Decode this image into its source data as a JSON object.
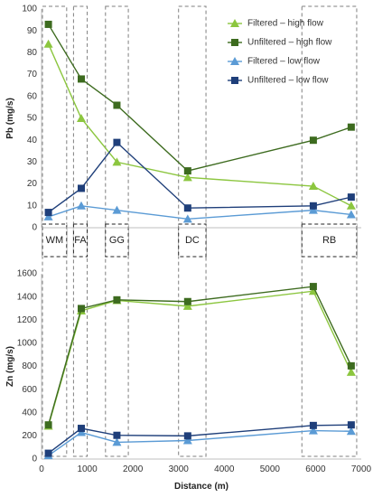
{
  "chart_data": [
    {
      "type": "line",
      "ylabel": "Pb (mg/s)",
      "ylim": [
        0,
        100
      ],
      "yticks": [
        0,
        10,
        20,
        30,
        40,
        50,
        60,
        70,
        80,
        90,
        100
      ],
      "x": [
        150,
        870,
        1650,
        3200,
        5950,
        6780
      ],
      "legend_position": "top-right",
      "series": [
        {
          "name": "Filtered – high flow",
          "marker": "triangle",
          "color": "#8cc63f",
          "values": [
            84,
            50,
            30,
            23,
            19,
            10
          ]
        },
        {
          "name": "Unfiltered – high flow",
          "marker": "square",
          "color": "#3d6b1f",
          "values": [
            93,
            68,
            56,
            26,
            40,
            46
          ]
        },
        {
          "name": "Filtered – low flow",
          "marker": "triangle",
          "color": "#5b9bd5",
          "values": [
            5,
            10,
            8,
            4,
            8,
            6
          ]
        },
        {
          "name": "Unfiltered – low flow",
          "marker": "square",
          "color": "#1f3f7a",
          "values": [
            7,
            18,
            39,
            9,
            10,
            14
          ]
        }
      ]
    },
    {
      "type": "line",
      "ylabel": "Zn (mg/s)",
      "xlabel": "Distance (m)",
      "ylim": [
        0,
        1600
      ],
      "yticks": [
        0,
        200,
        400,
        600,
        800,
        1000,
        1200,
        1400,
        1600
      ],
      "xlim": [
        0,
        7000
      ],
      "xticks": [
        0,
        1000,
        2000,
        3000,
        4000,
        5000,
        6000,
        7000
      ],
      "x": [
        150,
        870,
        1650,
        3200,
        5950,
        6780
      ],
      "series": [
        {
          "name": "Filtered – high flow",
          "marker": "triangle",
          "color": "#8cc63f",
          "values": [
            285,
            1280,
            1370,
            1320,
            1450,
            750
          ]
        },
        {
          "name": "Unfiltered – high flow",
          "marker": "square",
          "color": "#3d6b1f",
          "values": [
            295,
            1300,
            1375,
            1360,
            1490,
            805
          ]
        },
        {
          "name": "Filtered – low flow",
          "marker": "triangle",
          "color": "#5b9bd5",
          "values": [
            30,
            230,
            145,
            160,
            245,
            240
          ]
        },
        {
          "name": "Unfiltered – low flow",
          "marker": "square",
          "color": "#1f3f7a",
          "values": [
            50,
            265,
            205,
            200,
            290,
            295
          ]
        }
      ]
    }
  ],
  "zones": [
    {
      "label": "WM",
      "x0": 20,
      "x1": 550
    },
    {
      "label": "FA",
      "x0": 700,
      "x1": 1000
    },
    {
      "label": "GG",
      "x0": 1400,
      "x1": 1900
    },
    {
      "label": "DC",
      "x0": 3000,
      "x1": 3600
    },
    {
      "label": "RB",
      "x0": 5700,
      "x1": 6900
    }
  ]
}
